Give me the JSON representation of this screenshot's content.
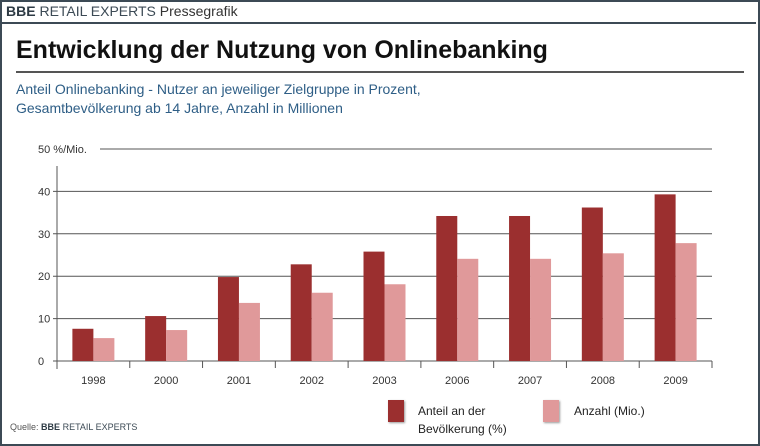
{
  "header": {
    "brand_bold": "BBE",
    "brand": "RETAIL EXPERTS",
    "label": "Pressegrafik"
  },
  "title": "Entwicklung der Nutzung von Onlinebanking",
  "subtitle_line1": "Anteil Onlinebanking - Nutzer an jeweiliger Zielgruppe in Prozent,",
  "subtitle_line2": "Gesamtbevölkerung ab 14 Jahre, Anzahl in Millionen",
  "source": {
    "label": "Quelle:",
    "brand_bold": "BBE",
    "brand": "RETAIL EXPERTS"
  },
  "chart_data": {
    "type": "bar",
    "categories": [
      "1998",
      "2000",
      "2001",
      "2002",
      "2003",
      "2006",
      "2007",
      "2008",
      "2009"
    ],
    "ylim": [
      0,
      50
    ],
    "yticks": [
      0,
      10,
      20,
      30,
      40,
      50
    ],
    "yunit": "%/Mio.",
    "grid": true,
    "legend_placement": "bottom-right",
    "series": [
      {
        "name": "Anteil an der Bevölkerung (%)",
        "name_line1": "Anteil an der",
        "name_line2": "Bevölkerung (%)",
        "color": "#9b2f2f",
        "values": [
          7.6,
          10.6,
          19.8,
          22.8,
          25.8,
          34.2,
          34.2,
          36.2,
          39.3
        ]
      },
      {
        "name": "Anzahl (Mio.)",
        "color": "#e0999a",
        "values": [
          5.4,
          7.3,
          13.7,
          16.1,
          18.1,
          24.1,
          24.1,
          25.4,
          27.8
        ]
      }
    ]
  }
}
